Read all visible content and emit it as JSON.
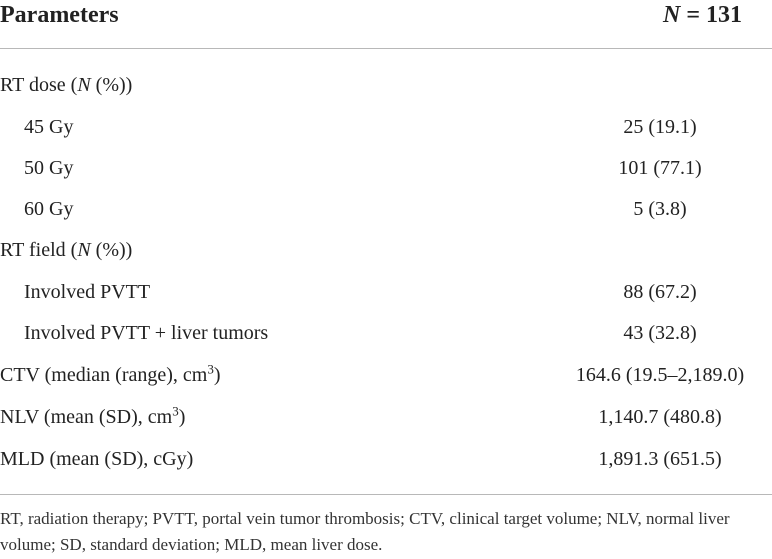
{
  "header": {
    "parameters": "Parameters",
    "n_symbol": "N",
    "n_value": " = 131"
  },
  "rows": [
    {
      "label_pre": "RT dose (",
      "label_italic": "N",
      "label_post": " (%))",
      "value": ""
    },
    {
      "label": "45 Gy",
      "value": "25 (19.1)"
    },
    {
      "label": "50 Gy",
      "value": "101 (77.1)"
    },
    {
      "label": "60 Gy",
      "value": "5 (3.8)"
    },
    {
      "label_pre": "RT field (",
      "label_italic": "N",
      "label_post": " (%))",
      "value": ""
    },
    {
      "label": "Involved PVTT",
      "value": "88 (67.2)"
    },
    {
      "label": "Involved PVTT + liver tumors",
      "value": "43 (32.8)"
    },
    {
      "label_pre": "CTV (median (range), cm",
      "label_sup": "3",
      "label_post": ")",
      "value": "164.6 (19.5–2,189.0)"
    },
    {
      "label_pre": "NLV (mean (SD), cm",
      "label_sup": "3",
      "label_post": ")",
      "value": "1,140.7 (480.8)"
    },
    {
      "label": "MLD (mean (SD), cGy)",
      "value": "1,891.3 (651.5)"
    }
  ],
  "footnote": "RT, radiation therapy; PVTT, portal vein tumor thrombosis; CTV, clinical target volume; NLV, normal liver volume; SD, standard deviation; MLD, mean liver dose."
}
